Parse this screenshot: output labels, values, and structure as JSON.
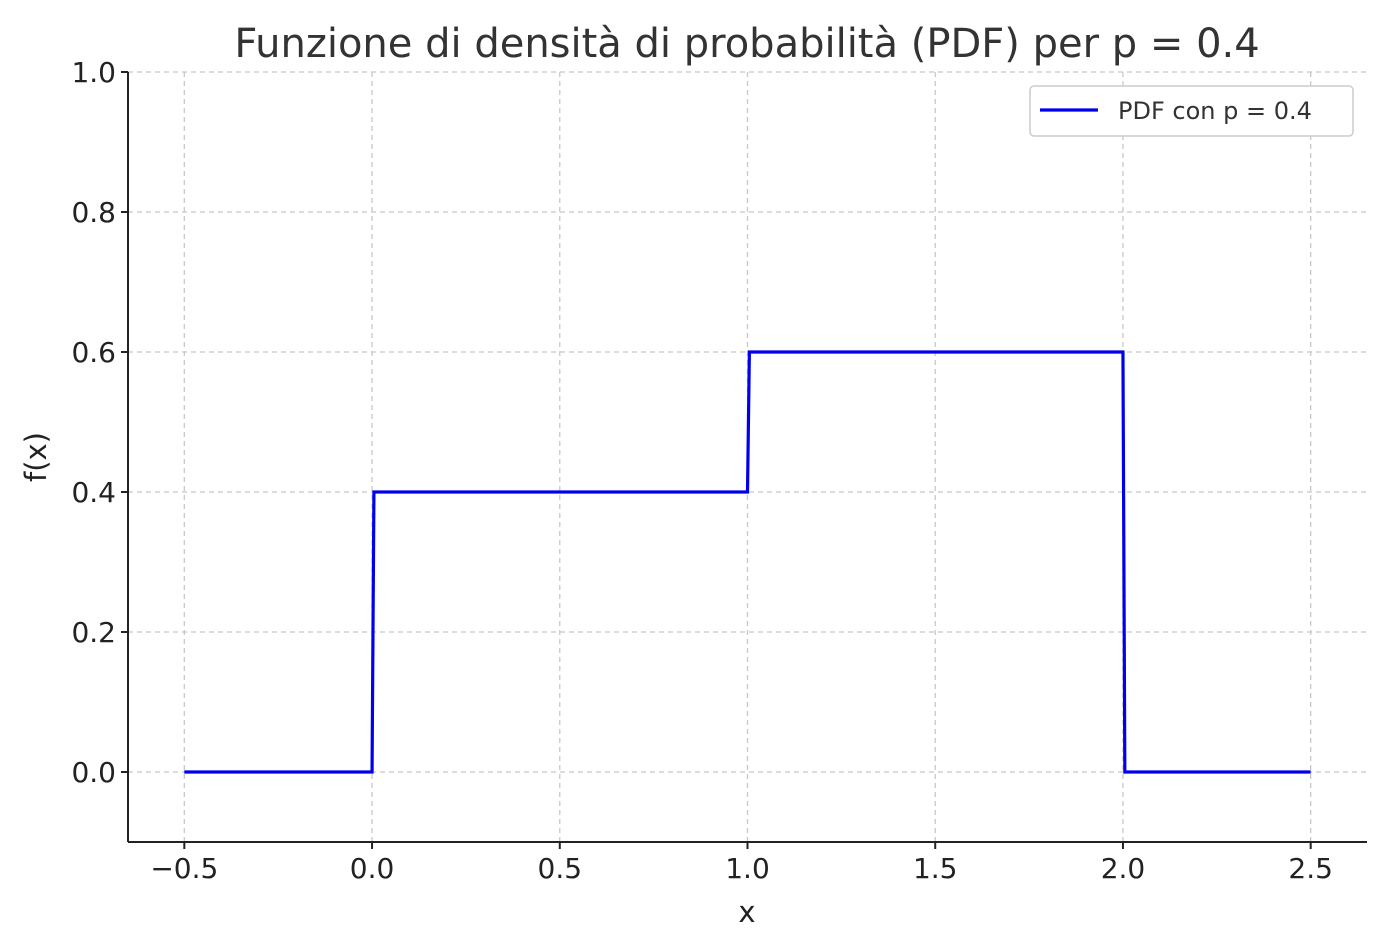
{
  "chart_data": {
    "type": "line",
    "title": "Funzione di densità di probabilità (PDF) per p = 0.4",
    "xlabel": "x",
    "ylabel": "f(x)",
    "xlim": [
      -0.65,
      2.65
    ],
    "ylim": [
      -0.1,
      1.0
    ],
    "x_ticks": [
      -0.5,
      0.0,
      0.5,
      1.0,
      1.5,
      2.0,
      2.5
    ],
    "x_tick_labels": [
      "−0.5",
      "0.0",
      "0.5",
      "1.0",
      "1.5",
      "2.0",
      "2.5"
    ],
    "y_ticks": [
      0.0,
      0.2,
      0.4,
      0.6,
      0.8,
      1.0
    ],
    "y_tick_labels": [
      "0.0",
      "0.2",
      "0.4",
      "0.6",
      "0.8",
      "1.0"
    ],
    "grid": true,
    "legend_position": "top-right",
    "series": [
      {
        "name": "PDF con p = 0.4",
        "color": "#0000ee",
        "x": [
          -0.5,
          0.0,
          0.005,
          1.0,
          1.005,
          2.0,
          2.005,
          2.5
        ],
        "y": [
          0.0,
          0.0,
          0.4,
          0.4,
          0.6,
          0.6,
          0.0,
          0.0
        ]
      }
    ]
  }
}
